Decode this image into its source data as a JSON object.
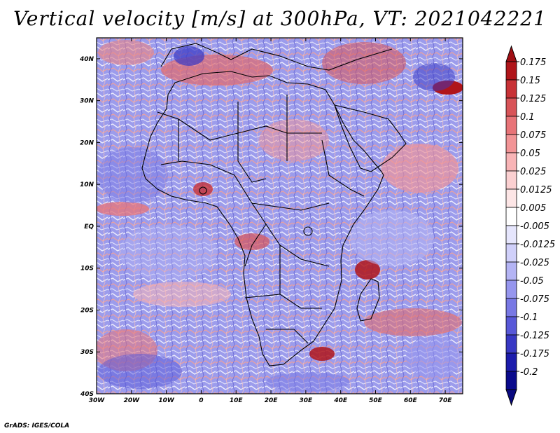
{
  "title": "Vertical velocity [m/s] at 300hPa, VT: 2021042221",
  "credit": "GrADS: IGES/COLA",
  "map": {
    "lat_labels": [
      "40N",
      "30N",
      "20N",
      "10N",
      "EQ",
      "10S",
      "20S",
      "30S",
      "40S"
    ],
    "lon_labels": [
      "30W",
      "20W",
      "10W",
      "0",
      "10E",
      "20E",
      "30E",
      "40E",
      "50E",
      "60E",
      "70E"
    ],
    "lat_range": [
      -40,
      45
    ],
    "lon_range": [
      -30,
      75
    ]
  },
  "colorbar": {
    "labels": [
      "0.175",
      "0.15",
      "0.125",
      "0.1",
      "0.075",
      "0.05",
      "0.025",
      "0.0125",
      "0.005",
      "-0.005",
      "-0.0125",
      "-0.025",
      "-0.05",
      "-0.075",
      "-0.1",
      "-0.125",
      "-0.175",
      "-0.2"
    ],
    "colors": [
      "#b0151a",
      "#c83236",
      "#d85458",
      "#e87478",
      "#f29496",
      "#f8b4b6",
      "#fbd0d1",
      "#fde6e6",
      "#ffffff",
      "#e6e6fd",
      "#d0d0fa",
      "#b4b4f4",
      "#9696ee",
      "#7878e4",
      "#5858d8",
      "#3838c4",
      "#1c1cac",
      "#0a0a8c"
    ],
    "top_arrow_color": "#a00f14",
    "bottom_arrow_color": "#0a0a80"
  }
}
